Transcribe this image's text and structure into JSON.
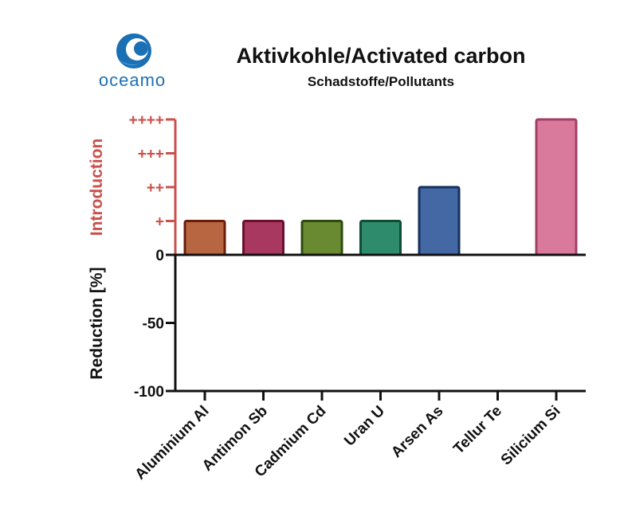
{
  "logo": {
    "text": "oceamo",
    "color": "#1b6fb5"
  },
  "chart_data": {
    "type": "bar",
    "title": "Aktivkohle/Activated carbon",
    "subtitle": "Schadstoffe/Pollutants",
    "categories": [
      "Aluminium Al",
      "Antimon Sb",
      "Cadmium Cd",
      "Uran U",
      "Arsen As",
      "Tellur Te",
      "Silicium Si"
    ],
    "values": [
      1,
      1,
      1,
      1,
      2,
      0,
      4
    ],
    "value_unit": "introduction level (+ count)",
    "bar_colors": [
      "#b86542",
      "#a8385f",
      "#6a8a31",
      "#2e8c6c",
      "#4468a4",
      "#ffffff",
      "#d9799c"
    ],
    "bar_edge_colors": [
      "#6a1e0a",
      "#6a0f2e",
      "#2e4a10",
      "#0d4e35",
      "#14305c",
      "#ffffff",
      "#a33e66"
    ],
    "upper_axis": {
      "label": "Introduction",
      "ticks": [
        {
          "label": "+",
          "level": 1
        },
        {
          "label": "++",
          "level": 2
        },
        {
          "label": "+++",
          "level": 3
        },
        {
          "label": "++++",
          "level": 4
        }
      ],
      "max_level": 4,
      "color": "#c9504b"
    },
    "lower_axis": {
      "label": "Reduction [%]",
      "ticks": [
        0,
        -50,
        -100
      ],
      "range": [
        -100,
        0
      ],
      "color": "#111111"
    },
    "grid": false,
    "legend": "none"
  }
}
